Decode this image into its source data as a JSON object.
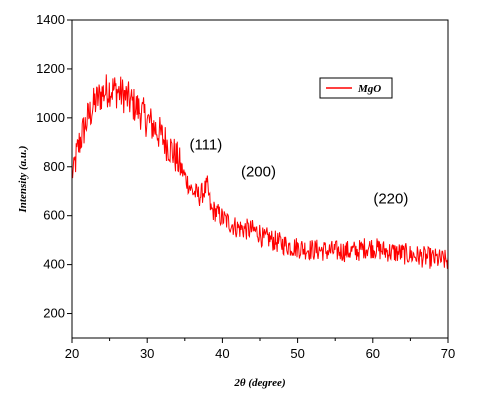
{
  "chart_data": {
    "type": "line",
    "title": "",
    "xlabel": "2θ (degree)",
    "ylabel": "Intensity (a.u.)",
    "xlim": [
      20,
      70
    ],
    "ylim": [
      100,
      1400
    ],
    "x_ticks": [
      "20",
      "30",
      "40",
      "50",
      "60",
      "70"
    ],
    "y_ticks": [
      "200",
      "400",
      "600",
      "800",
      "1000",
      "1200",
      "1400"
    ],
    "grid": false,
    "legend_position": "top-right",
    "series": [
      {
        "name": "MgO",
        "color": "#ff0000",
        "x": [
          20,
          21,
          22,
          23,
          24,
          25,
          26,
          27,
          28,
          29,
          30,
          31,
          32,
          33,
          34,
          35,
          36,
          37,
          38,
          38.5,
          39,
          40,
          41,
          42,
          43,
          44,
          45,
          45.5,
          46,
          47,
          48,
          49,
          50,
          51,
          52,
          53,
          54,
          55,
          56,
          57,
          58,
          59,
          60,
          61,
          62,
          62.5,
          63,
          64,
          65,
          66,
          67,
          68,
          69,
          70
        ],
        "y": [
          760,
          900,
          990,
          1060,
          1100,
          1120,
          1110,
          1090,
          1060,
          1030,
          990,
          960,
          920,
          880,
          830,
          760,
          700,
          680,
          720,
          620,
          620,
          590,
          570,
          550,
          545,
          540,
          530,
          500,
          510,
          495,
          485,
          475,
          470,
          465,
          460,
          460,
          455,
          455,
          455,
          455,
          455,
          470,
          470,
          460,
          455,
          450,
          450,
          445,
          440,
          435,
          430,
          425,
          420,
          415
        ]
      }
    ],
    "annotations": [
      {
        "text": "(111)",
        "x": 37.8,
        "y": 870
      },
      {
        "text": "(200)",
        "x": 44.8,
        "y": 760
      },
      {
        "text": "(220)",
        "x": 62.4,
        "y": 650
      }
    ]
  }
}
